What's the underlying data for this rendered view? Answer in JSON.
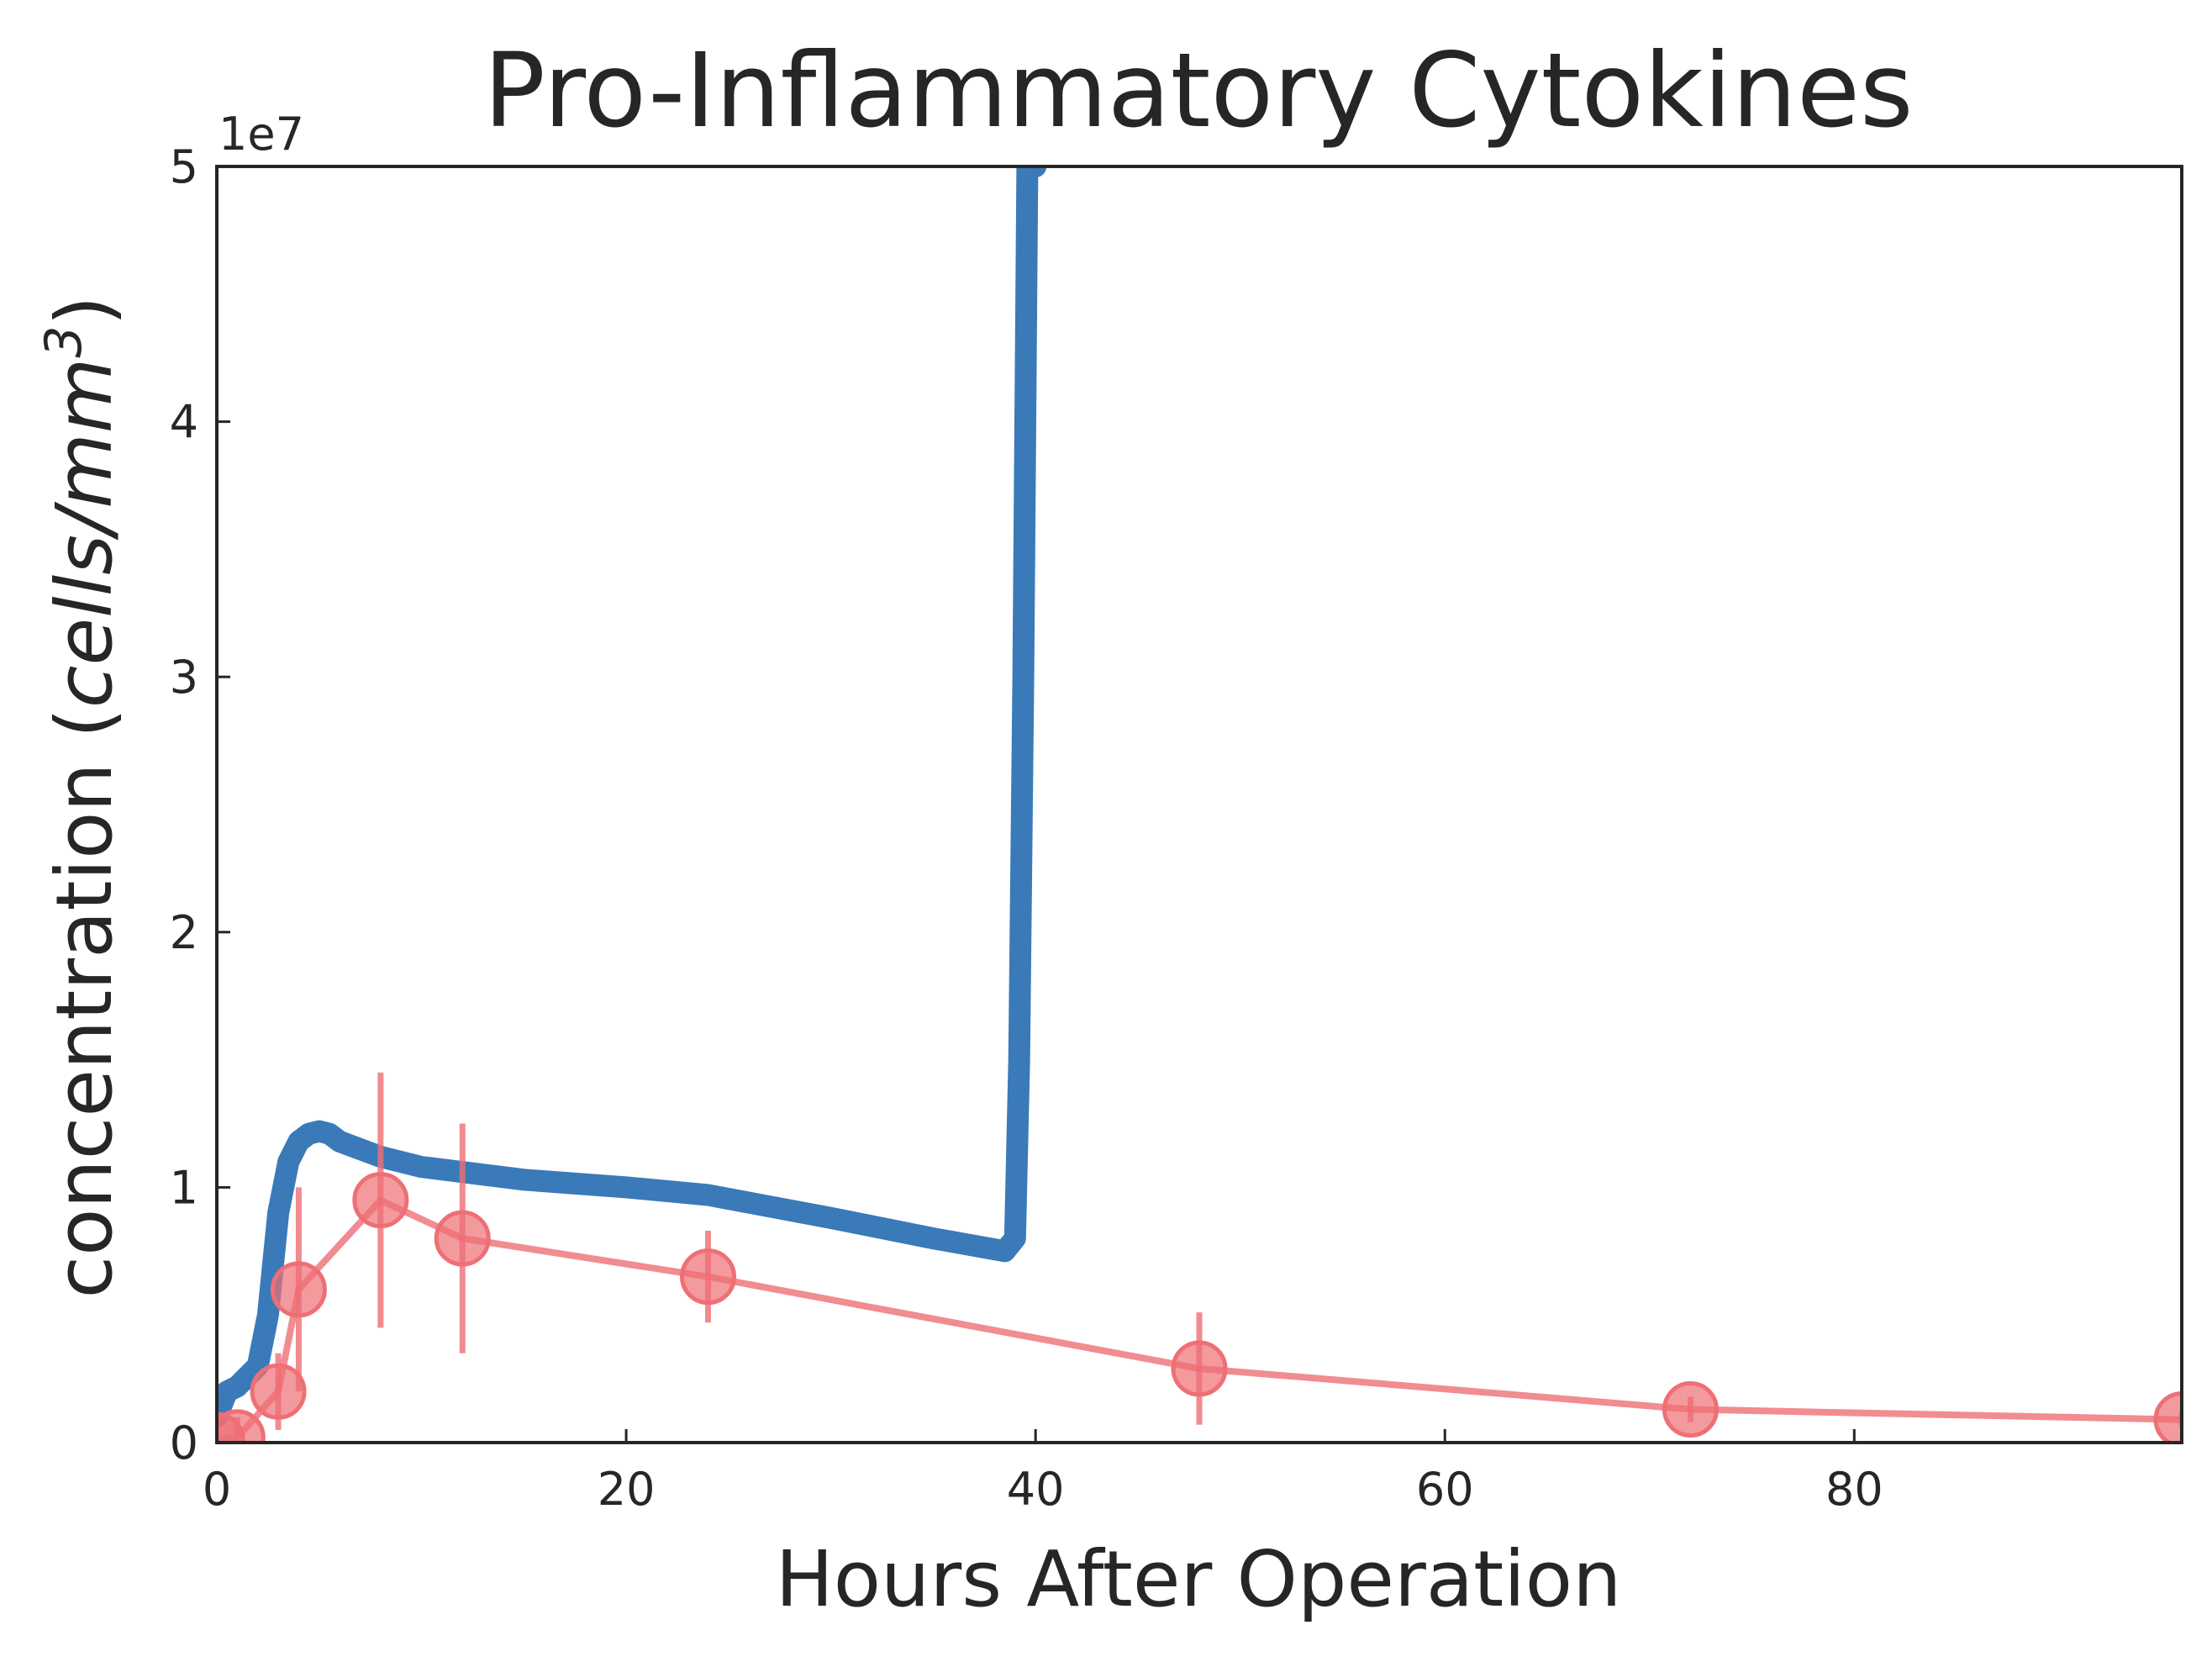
{
  "chart_data": {
    "type": "line",
    "title": "Pro-Inflammatory Cytokines",
    "xlabel": "Hours After Operation",
    "ylabel": "concentration (",
    "ylabel_unit": "cells/mm",
    "ylabel_exp": "3",
    "ylabel_close": ")",
    "y_offset_label": "1e7",
    "xlim": [
      0,
      96
    ],
    "ylim": [
      0,
      5
    ],
    "x_ticks": [
      0,
      20,
      40,
      60,
      80
    ],
    "y_ticks": [
      0,
      1,
      2,
      3,
      4,
      5
    ],
    "grid": false,
    "series": [
      {
        "kind": "model",
        "color": "#3a7ab8",
        "x": [
          0,
          0.5,
          1,
          2,
          2.5,
          3,
          3.5,
          4,
          4.5,
          5,
          5.5,
          6,
          8,
          10,
          12,
          15,
          20,
          24,
          30,
          35,
          38.5,
          39,
          39.2,
          39.4,
          39.6,
          40
        ],
        "y": [
          0.1,
          0.2,
          0.22,
          0.3,
          0.5,
          0.9,
          1.1,
          1.18,
          1.21,
          1.22,
          1.21,
          1.18,
          1.12,
          1.08,
          1.06,
          1.03,
          1.0,
          0.97,
          0.88,
          0.8,
          0.75,
          0.8,
          1.5,
          3.0,
          5.0,
          5.0
        ]
      },
      {
        "kind": "data",
        "color": "#ee6f75",
        "x": [
          0,
          1,
          3,
          4,
          8,
          12,
          24,
          48,
          72,
          96
        ],
        "y": [
          0.01,
          0.02,
          0.2,
          0.6,
          0.95,
          0.8,
          0.65,
          0.29,
          0.13,
          0.09
        ],
        "yerr": [
          0.02,
          0.08,
          0.15,
          0.4,
          0.5,
          0.45,
          0.18,
          0.22,
          0.05,
          0.03
        ]
      }
    ]
  }
}
